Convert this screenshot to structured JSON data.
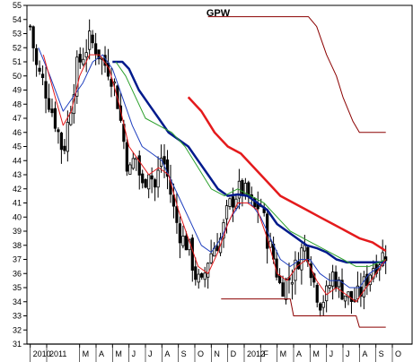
{
  "chart_data": {
    "type": "candlestick",
    "title": "GPW",
    "ylim": [
      31,
      55
    ],
    "y_ticks": [
      31,
      32,
      33,
      34,
      35,
      36,
      37,
      38,
      39,
      40,
      41,
      42,
      43,
      44,
      45,
      46,
      47,
      48,
      49,
      50,
      51,
      52,
      53,
      54,
      55
    ],
    "x_ticks": [
      {
        "label": "2010",
        "t": 0
      },
      {
        "label": "2011",
        "t": 1
      },
      {
        "label": "M",
        "t": 3
      },
      {
        "label": "A",
        "t": 4
      },
      {
        "label": "M",
        "t": 5
      },
      {
        "label": "J",
        "t": 6
      },
      {
        "label": "J",
        "t": 7
      },
      {
        "label": "A",
        "t": 8
      },
      {
        "label": "S",
        "t": 9
      },
      {
        "label": "O",
        "t": 10
      },
      {
        "label": "N",
        "t": 11
      },
      {
        "label": "D",
        "t": 12
      },
      {
        "label": "2012",
        "t": 13
      },
      {
        "label": "F",
        "t": 14
      },
      {
        "label": "M",
        "t": 15
      },
      {
        "label": "A",
        "t": 16
      },
      {
        "label": "M",
        "t": 17
      },
      {
        "label": "J",
        "t": 18
      },
      {
        "label": "J",
        "t": 19
      },
      {
        "label": "A",
        "t": 20
      },
      {
        "label": "S",
        "t": 21
      },
      {
        "label": "O",
        "t": 22
      }
    ],
    "x_range": [
      -0.2,
      23.2
    ],
    "price_anchors": [
      [
        0,
        53.5
      ],
      [
        0.4,
        50.5
      ],
      [
        0.8,
        49.5
      ],
      [
        1.2,
        48.0
      ],
      [
        1.6,
        46.5
      ],
      [
        2.0,
        44.5
      ],
      [
        2.4,
        47.5
      ],
      [
        2.8,
        50.5
      ],
      [
        3.2,
        51.5
      ],
      [
        3.6,
        52.5
      ],
      [
        4.0,
        52.0
      ],
      [
        4.4,
        51.0
      ],
      [
        4.8,
        50.5
      ],
      [
        5.2,
        49.0
      ],
      [
        5.6,
        46.0
      ],
      [
        6.0,
        43.0
      ],
      [
        6.4,
        44.5
      ],
      [
        6.8,
        42.0
      ],
      [
        7.2,
        43.5
      ],
      [
        7.6,
        42.0
      ],
      [
        8.0,
        44.5
      ],
      [
        8.4,
        42.5
      ],
      [
        8.8,
        40.0
      ],
      [
        9.2,
        38.5
      ],
      [
        9.6,
        38.0
      ],
      [
        10.0,
        36.0
      ],
      [
        10.4,
        35.0
      ],
      [
        10.8,
        37.0
      ],
      [
        11.2,
        38.0
      ],
      [
        11.6,
        38.5
      ],
      [
        12.0,
        40.5
      ],
      [
        12.4,
        41.5
      ],
      [
        12.8,
        42.0
      ],
      [
        13.2,
        41.5
      ],
      [
        13.6,
        40.5
      ],
      [
        14.0,
        41.0
      ],
      [
        14.4,
        38.5
      ],
      [
        14.8,
        37.0
      ],
      [
        15.2,
        35.0
      ],
      [
        15.6,
        35.5
      ],
      [
        16.0,
        36.0
      ],
      [
        16.4,
        37.5
      ],
      [
        16.8,
        38.0
      ],
      [
        17.2,
        35.5
      ],
      [
        17.6,
        34.0
      ],
      [
        18.0,
        34.5
      ],
      [
        18.4,
        36.0
      ],
      [
        18.8,
        35.0
      ],
      [
        19.2,
        34.5
      ],
      [
        19.6,
        34.0
      ],
      [
        20.0,
        34.5
      ],
      [
        20.4,
        35.5
      ],
      [
        20.8,
        36.5
      ],
      [
        21.2,
        37.0
      ],
      [
        21.6,
        37.5
      ]
    ],
    "overlay_series": [
      {
        "color": "#e41a1c",
        "width": 2.5,
        "points": [
          [
            9.6,
            48.5
          ],
          [
            10.4,
            47.5
          ],
          [
            11.2,
            46.0
          ],
          [
            12.0,
            45.0
          ],
          [
            12.8,
            44.5
          ],
          [
            13.6,
            43.5
          ],
          [
            14.4,
            42.5
          ],
          [
            15.2,
            41.5
          ],
          [
            16.0,
            41.0
          ],
          [
            16.8,
            40.5
          ],
          [
            17.6,
            40.0
          ],
          [
            18.4,
            39.5
          ],
          [
            19.2,
            39.0
          ],
          [
            20.0,
            38.5
          ],
          [
            20.8,
            38.2
          ],
          [
            21.6,
            37.6
          ]
        ]
      },
      {
        "color": "#001a8c",
        "width": 2.5,
        "points": [
          [
            5.0,
            51.0
          ],
          [
            5.6,
            51.0
          ],
          [
            6.0,
            50.5
          ],
          [
            6.6,
            49.0
          ],
          [
            7.2,
            48.0
          ],
          [
            7.8,
            47.0
          ],
          [
            8.4,
            46.0
          ],
          [
            9.0,
            45.5
          ],
          [
            9.6,
            45.0
          ],
          [
            10.2,
            44.0
          ],
          [
            10.8,
            43.0
          ],
          [
            11.4,
            42.0
          ],
          [
            12.0,
            41.5
          ],
          [
            12.6,
            41.6
          ],
          [
            13.2,
            41.5
          ],
          [
            13.8,
            41.0
          ],
          [
            14.4,
            40.5
          ],
          [
            15.0,
            39.5
          ],
          [
            15.6,
            39.0
          ],
          [
            16.2,
            38.5
          ],
          [
            16.8,
            38.0
          ],
          [
            17.4,
            37.8
          ],
          [
            18.0,
            37.5
          ],
          [
            18.6,
            37.0
          ],
          [
            19.2,
            36.8
          ],
          [
            21.6,
            36.8
          ]
        ]
      },
      {
        "color": "#2ca02c",
        "width": 1,
        "points": [
          [
            5.2,
            51.0
          ],
          [
            5.8,
            50.0
          ],
          [
            6.4,
            48.5
          ],
          [
            7.0,
            47.0
          ],
          [
            7.8,
            46.5
          ],
          [
            8.6,
            46.0
          ],
          [
            9.4,
            45.0
          ],
          [
            10.2,
            43.5
          ],
          [
            11.0,
            42.0
          ],
          [
            11.8,
            41.5
          ],
          [
            12.6,
            42.0
          ],
          [
            13.4,
            41.5
          ],
          [
            14.2,
            41.0
          ],
          [
            15.0,
            40.0
          ],
          [
            15.8,
            39.0
          ],
          [
            16.6,
            38.5
          ],
          [
            17.4,
            38.0
          ],
          [
            18.2,
            37.5
          ],
          [
            19.0,
            37.0
          ],
          [
            19.8,
            36.5
          ],
          [
            20.6,
            36.5
          ],
          [
            21.6,
            37.0
          ]
        ]
      },
      {
        "color": "#1f3fbf",
        "width": 1,
        "points": [
          [
            0.5,
            52.0
          ],
          [
            1.2,
            50.0
          ],
          [
            2.0,
            47.5
          ],
          [
            2.6,
            48.5
          ],
          [
            3.2,
            49.5
          ],
          [
            3.8,
            51.0
          ],
          [
            4.4,
            51.5
          ],
          [
            5.0,
            50.5
          ],
          [
            5.6,
            48.5
          ],
          [
            6.2,
            46.5
          ],
          [
            6.8,
            45.0
          ],
          [
            7.4,
            44.5
          ],
          [
            8.0,
            44.0
          ],
          [
            8.6,
            42.5
          ],
          [
            9.2,
            41.0
          ],
          [
            9.8,
            39.5
          ],
          [
            10.4,
            38.0
          ],
          [
            11.0,
            37.5
          ],
          [
            11.6,
            38.5
          ],
          [
            12.2,
            40.0
          ],
          [
            12.8,
            41.0
          ],
          [
            13.4,
            41.0
          ],
          [
            14.0,
            40.0
          ],
          [
            14.6,
            38.5
          ],
          [
            15.2,
            37.0
          ],
          [
            15.8,
            36.5
          ],
          [
            16.4,
            37.0
          ],
          [
            17.0,
            37.0
          ],
          [
            17.6,
            36.0
          ],
          [
            18.2,
            35.5
          ],
          [
            18.8,
            35.5
          ],
          [
            19.4,
            35.0
          ],
          [
            20.0,
            35.0
          ],
          [
            20.6,
            36.0
          ],
          [
            21.6,
            36.8
          ]
        ]
      },
      {
        "color": "#e41a1c",
        "width": 1,
        "points": [
          [
            0.8,
            51.5
          ],
          [
            1.4,
            49.0
          ],
          [
            2.0,
            46.5
          ],
          [
            2.5,
            47.5
          ],
          [
            3.0,
            50.0
          ],
          [
            3.6,
            51.5
          ],
          [
            4.2,
            51.5
          ],
          [
            4.8,
            50.5
          ],
          [
            5.4,
            48.0
          ],
          [
            6.0,
            45.0
          ],
          [
            6.6,
            44.0
          ],
          [
            7.2,
            43.0
          ],
          [
            7.8,
            43.5
          ],
          [
            8.4,
            43.0
          ],
          [
            9.0,
            40.5
          ],
          [
            9.6,
            38.5
          ],
          [
            10.2,
            36.5
          ],
          [
            10.8,
            36.0
          ],
          [
            11.4,
            37.5
          ],
          [
            12.0,
            39.5
          ],
          [
            12.6,
            41.0
          ],
          [
            13.2,
            41.0
          ],
          [
            13.8,
            40.5
          ],
          [
            14.4,
            38.5
          ],
          [
            15.0,
            36.0
          ],
          [
            15.6,
            35.5
          ],
          [
            16.2,
            36.5
          ],
          [
            16.8,
            37.0
          ],
          [
            17.4,
            35.5
          ],
          [
            18.0,
            34.5
          ],
          [
            18.6,
            35.0
          ],
          [
            19.2,
            34.5
          ],
          [
            19.8,
            34.0
          ],
          [
            20.4,
            35.0
          ],
          [
            21.0,
            36.0
          ],
          [
            21.6,
            37.0
          ]
        ]
      },
      {
        "color": "#8b0000",
        "width": 1,
        "points": [
          [
            10.8,
            54.2
          ],
          [
            13.0,
            54.2
          ],
          [
            15.0,
            54.2
          ],
          [
            16.9,
            54.2
          ],
          [
            17.4,
            53.5
          ],
          [
            18.0,
            51.5
          ],
          [
            18.6,
            50.0
          ],
          [
            19.0,
            48.5
          ],
          [
            19.6,
            46.8
          ],
          [
            20.0,
            46.0
          ],
          [
            21.6,
            46.0
          ]
        ]
      },
      {
        "color": "#8b0000",
        "width": 1,
        "points": [
          [
            11.6,
            34.2
          ],
          [
            15.8,
            34.2
          ],
          [
            16.0,
            33.0
          ],
          [
            19.8,
            33.0
          ],
          [
            20.0,
            32.2
          ],
          [
            21.6,
            32.2
          ]
        ]
      }
    ]
  }
}
